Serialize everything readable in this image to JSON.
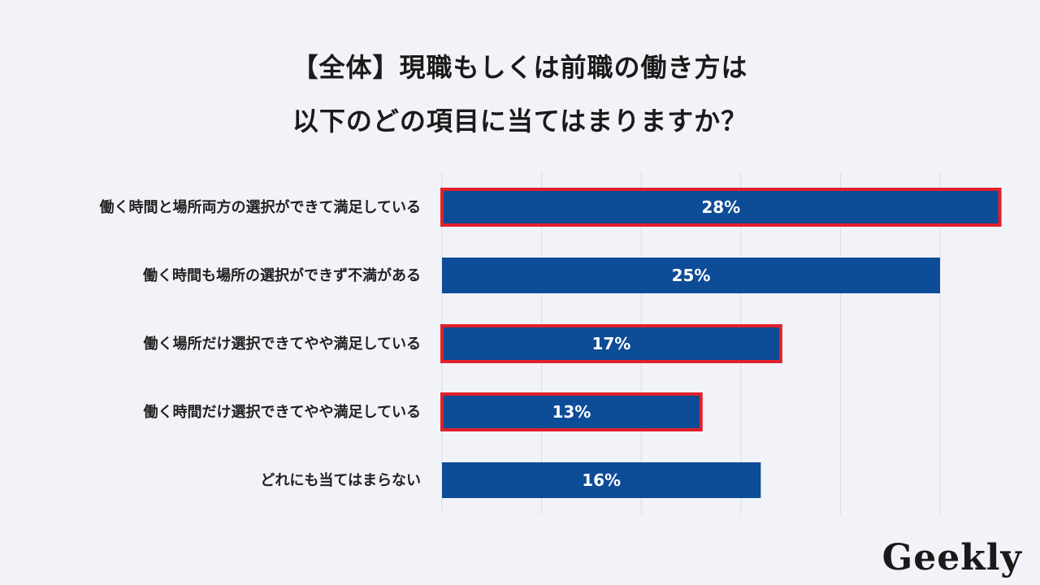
{
  "title": {
    "line1": "【全体】現職もしくは前職の働き方は",
    "line2": "以下のどの項目に当てはまりますか？"
  },
  "logo": "Geekly",
  "colors": {
    "background": "#f1f3f8",
    "bar": "#0d4c97",
    "highlight_border": "#e0202b",
    "grid": "#d9dce3"
  },
  "chart_data": {
    "type": "bar",
    "orientation": "horizontal",
    "categories": [
      "働く時間と場所両方の選択ができて満足している",
      "働く時間も場所の選択ができず不満がある",
      "働く場所だけ選択できてやや満足している",
      "働く時間だけ選択できてやや満足している",
      "どれにも当てはまらない"
    ],
    "values": [
      28,
      25,
      17,
      13,
      16
    ],
    "value_labels": [
      "28%",
      "25%",
      "17%",
      "13%",
      "16%"
    ],
    "highlighted": [
      true,
      false,
      true,
      true,
      false
    ],
    "xlim": [
      0,
      30
    ],
    "grid_step": 5,
    "grid": true
  }
}
